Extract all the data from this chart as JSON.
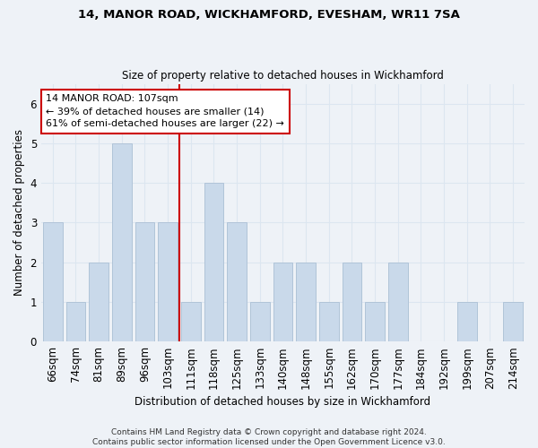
{
  "title1": "14, MANOR ROAD, WICKHAMFORD, EVESHAM, WR11 7SA",
  "title2": "Size of property relative to detached houses in Wickhamford",
  "xlabel": "Distribution of detached houses by size in Wickhamford",
  "ylabel": "Number of detached properties",
  "footer": "Contains HM Land Registry data © Crown copyright and database right 2024.\nContains public sector information licensed under the Open Government Licence v3.0.",
  "categories": [
    "66sqm",
    "74sqm",
    "81sqm",
    "89sqm",
    "96sqm",
    "103sqm",
    "111sqm",
    "118sqm",
    "125sqm",
    "133sqm",
    "140sqm",
    "148sqm",
    "155sqm",
    "162sqm",
    "170sqm",
    "177sqm",
    "184sqm",
    "192sqm",
    "199sqm",
    "207sqm",
    "214sqm"
  ],
  "values": [
    3,
    1,
    2,
    5,
    3,
    3,
    1,
    4,
    3,
    1,
    2,
    2,
    1,
    2,
    1,
    2,
    0,
    0,
    1,
    0,
    1
  ],
  "bar_color": "#c9d9ea",
  "bar_edge_color": "#b0c4d8",
  "grid_color": "#dce6f0",
  "vline_color": "#cc0000",
  "annotation_text": "14 MANOR ROAD: 107sqm\n← 39% of detached houses are smaller (14)\n61% of semi-detached houses are larger (22) →",
  "annotation_box_color": "#ffffff",
  "annotation_box_edge_color": "#cc0000",
  "ylim": [
    0,
    6.5
  ],
  "yticks": [
    0,
    1,
    2,
    3,
    4,
    5,
    6
  ],
  "background_color": "#eef2f7"
}
